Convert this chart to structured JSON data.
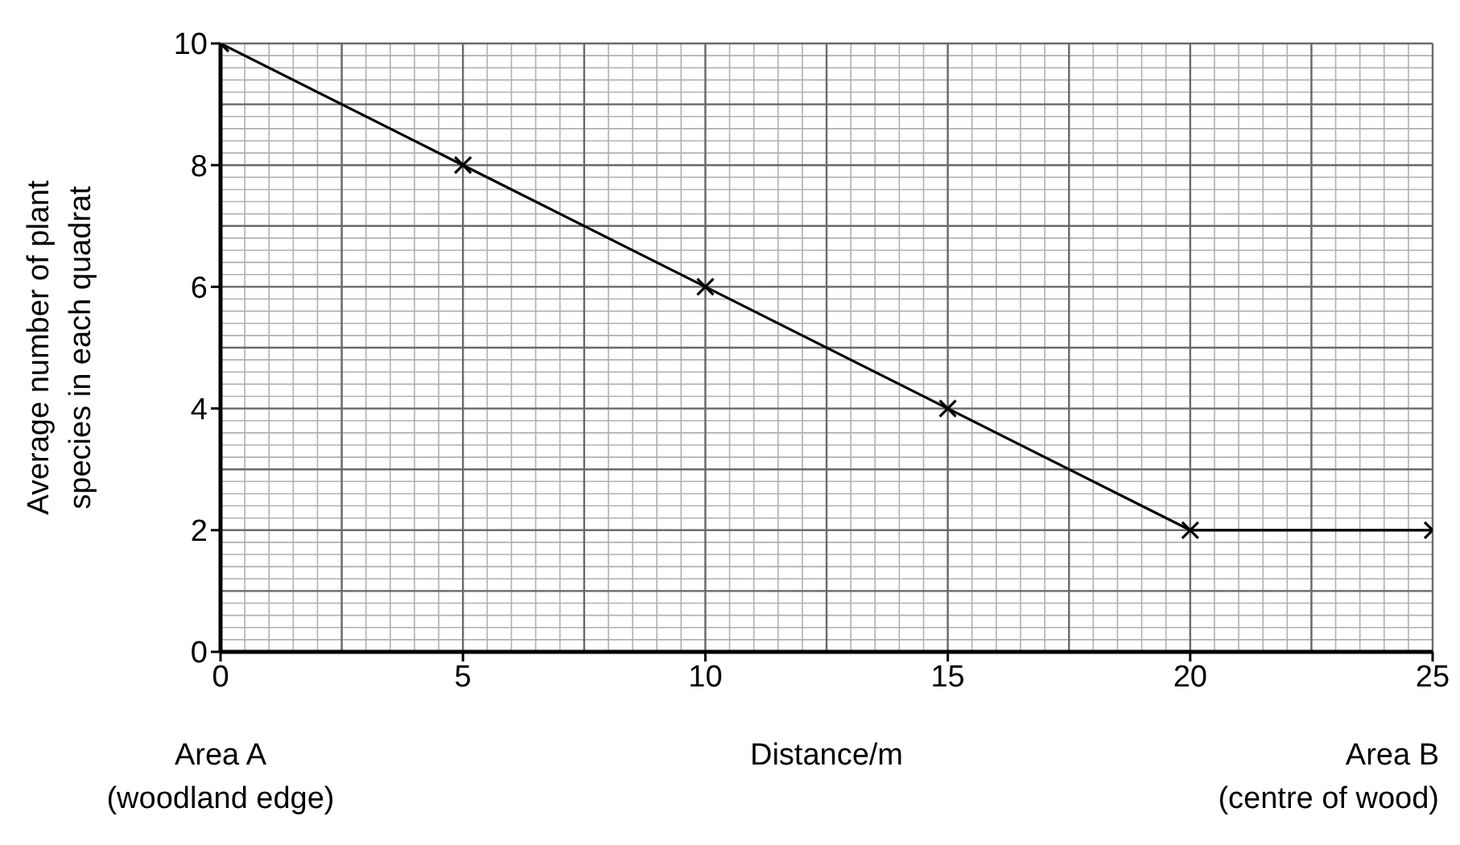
{
  "chart_data": {
    "type": "line",
    "xlabel": "Distance/m",
    "ylabel": "Average number of plant\nspecies in each quadrat",
    "x": [
      0,
      5,
      10,
      15,
      20,
      25
    ],
    "series": [
      {
        "color": "#000000",
        "values": [
          10,
          8,
          6,
          4,
          2,
          2
        ]
      }
    ],
    "xlim": [
      0,
      25
    ],
    "ylim": [
      0,
      10
    ],
    "xticks": [
      0,
      5,
      10,
      15,
      20,
      25
    ],
    "yticks": [
      0,
      2,
      4,
      6,
      8,
      10
    ],
    "grid": true,
    "marker": "cross",
    "line_style": "solid",
    "annotations": [
      "Area A\n(woodland edge)",
      "Area B\n(centre of wood)"
    ]
  }
}
